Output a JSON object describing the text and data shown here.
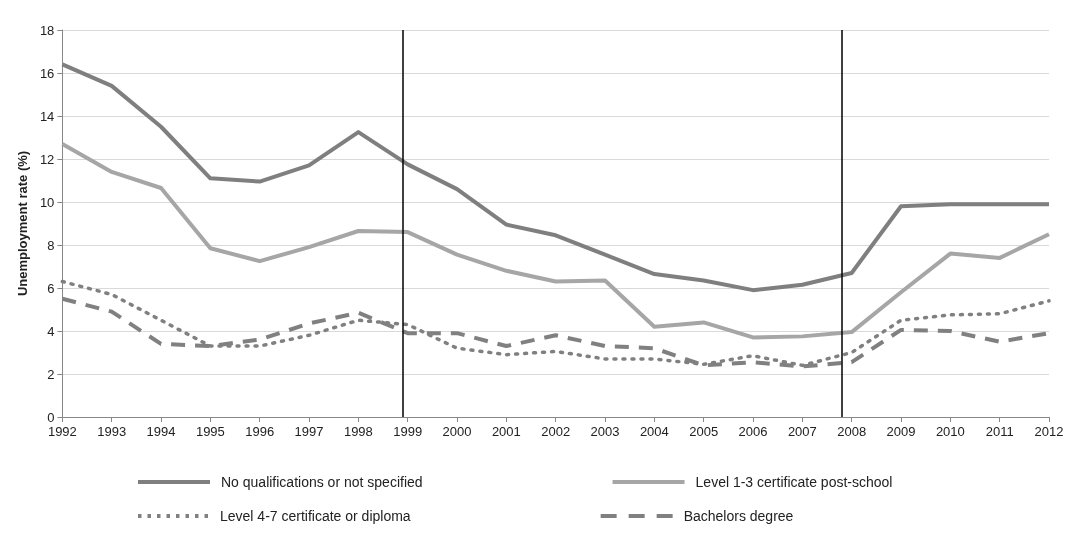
{
  "chart_data": {
    "type": "line",
    "ylabel": "Unemployment rate (%)",
    "x": [
      1992,
      1993,
      1994,
      1995,
      1996,
      1997,
      1998,
      1999,
      2000,
      2001,
      2002,
      2003,
      2004,
      2005,
      2006,
      2007,
      2008,
      2009,
      2010,
      2011,
      2012
    ],
    "xlim": [
      1992,
      2012
    ],
    "xticks": [
      1992,
      1993,
      1994,
      1995,
      1996,
      1997,
      1998,
      1999,
      2000,
      2001,
      2002,
      2003,
      2004,
      2005,
      2006,
      2007,
      2008,
      2009,
      2010,
      2011,
      2012
    ],
    "ylim": [
      0,
      18
    ],
    "yticks": [
      0,
      2,
      4,
      6,
      8,
      10,
      12,
      14,
      16,
      18
    ],
    "grid": "y",
    "legend": "bottom",
    "marker": "none",
    "series": [
      {
        "name": "No qualifications or not specified",
        "color": "#7f7f7f",
        "line_style": "solid",
        "values": [
          16.4,
          15.4,
          13.5,
          11.1,
          10.95,
          11.7,
          13.25,
          11.75,
          10.6,
          8.95,
          8.45,
          7.55,
          6.65,
          6.35,
          5.9,
          6.15,
          6.7,
          9.8,
          9.9,
          9.9,
          9.9
        ]
      },
      {
        "name": "Level 1-3 certificate post-school",
        "color": "#a6a6a6",
        "line_style": "solid",
        "values": [
          12.7,
          11.4,
          10.65,
          7.85,
          7.25,
          7.9,
          8.65,
          8.6,
          7.55,
          6.8,
          6.3,
          6.35,
          4.2,
          4.4,
          3.7,
          3.75,
          3.95,
          5.8,
          7.6,
          7.4,
          8.5
        ]
      },
      {
        "name": "Level 4-7 certificate or diploma",
        "color": "#808080",
        "line_style": "dotted",
        "values": [
          6.3,
          5.7,
          4.5,
          3.3,
          3.3,
          3.8,
          4.5,
          4.3,
          3.2,
          2.9,
          3.05,
          2.7,
          2.7,
          2.45,
          2.85,
          2.4,
          3.0,
          4.5,
          4.75,
          4.8,
          5.4
        ]
      },
      {
        "name": "Bachelors degree",
        "color": "#808080",
        "line_style": "dashed",
        "values": [
          5.5,
          4.9,
          3.4,
          3.3,
          3.6,
          4.35,
          4.85,
          3.9,
          3.9,
          3.3,
          3.8,
          3.3,
          3.2,
          2.4,
          2.55,
          2.35,
          2.55,
          4.05,
          4.0,
          3.5,
          3.9
        ]
      }
    ],
    "ref_lines": [
      {
        "axis": "x",
        "value": 1998.9,
        "color": "#000000"
      },
      {
        "axis": "x",
        "value": 2007.8,
        "color": "#000000"
      }
    ]
  }
}
